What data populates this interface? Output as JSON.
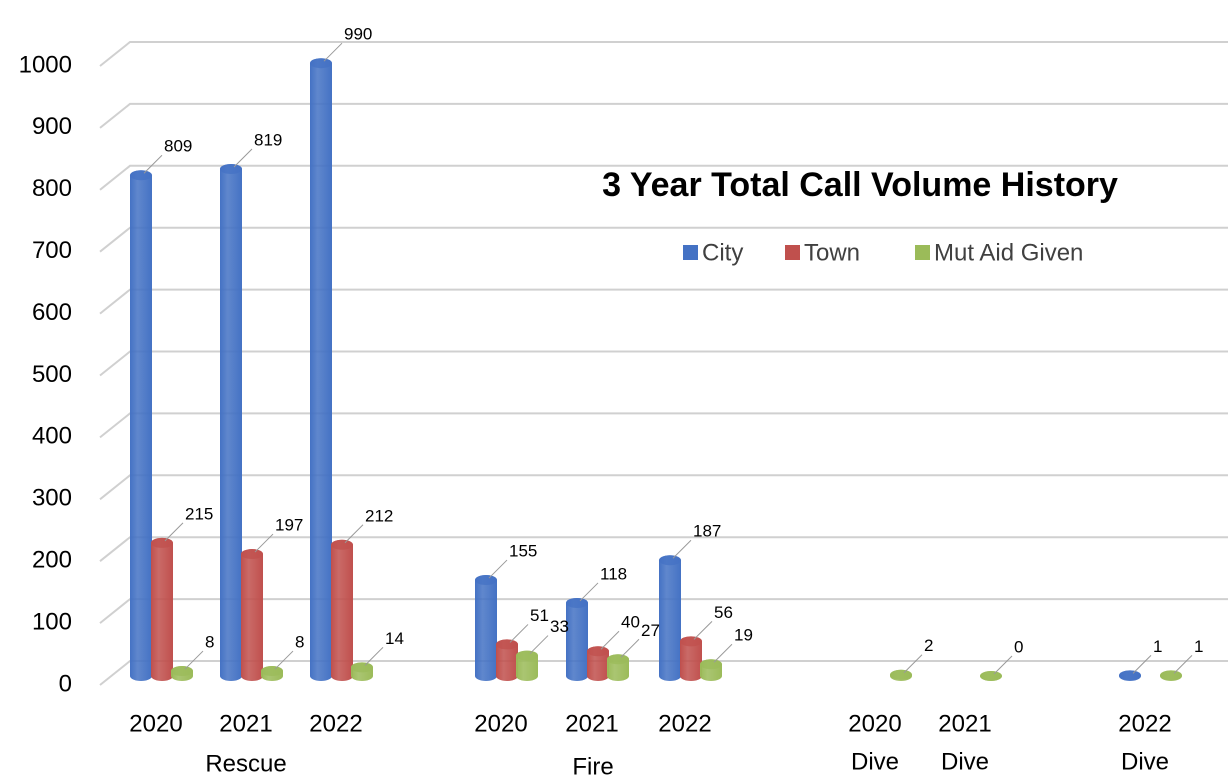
{
  "chart_data": {
    "type": "bar",
    "title": "3 Year Total Call Volume History",
    "groups": [
      {
        "name": "Rescue",
        "categories": [
          "2020",
          "2021",
          "2022"
        ]
      },
      {
        "name": "Fire",
        "categories": [
          "2020",
          "2021",
          "2022"
        ]
      },
      {
        "name": "Dive",
        "categories": [
          "2020",
          "2021",
          "2022"
        ]
      }
    ],
    "series": [
      {
        "name": "City",
        "color": "#4472c4",
        "values": [
          809,
          819,
          990,
          155,
          118,
          187,
          null,
          null,
          1
        ]
      },
      {
        "name": "Town",
        "color": "#c0504d",
        "values": [
          215,
          197,
          212,
          51,
          40,
          56,
          null,
          null,
          null
        ]
      },
      {
        "name": "Mut Aid Given",
        "color": "#9bbb59",
        "values": [
          8,
          8,
          14,
          33,
          27,
          19,
          2,
          0,
          1
        ]
      }
    ],
    "ylim": [
      0,
      1000
    ],
    "yticks": [
      0,
      100,
      200,
      300,
      400,
      500,
      600,
      700,
      800,
      900,
      1000
    ],
    "grid": true,
    "legend": "top-right"
  }
}
